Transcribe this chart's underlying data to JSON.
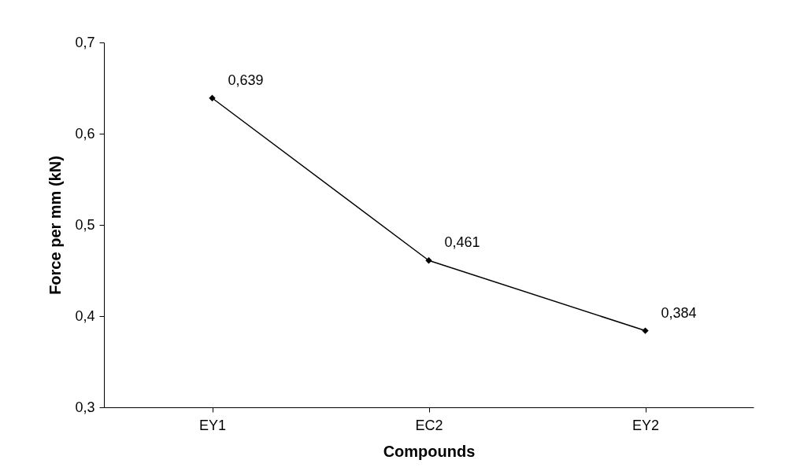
{
  "chart_data": {
    "type": "line",
    "xlabel": "Compounds",
    "ylabel": "Force per mm (kN)",
    "categories": [
      "EY1",
      "EC2",
      "EY2"
    ],
    "series": [
      {
        "color": "#000000",
        "values": [
          0.639,
          0.461,
          0.384
        ],
        "value_labels": [
          "0,639",
          "0,461",
          "0,384"
        ]
      }
    ],
    "ylim": [
      0.3,
      0.7
    ],
    "yticks": [
      {
        "value": 0.3,
        "label": "0,3"
      },
      {
        "value": 0.4,
        "label": "0,4"
      },
      {
        "value": 0.5,
        "label": "0,5"
      },
      {
        "value": 0.6,
        "label": "0,6"
      },
      {
        "value": 0.7,
        "label": "0,7"
      }
    ],
    "grid": false,
    "marker": "diamond",
    "line_style": "solid"
  }
}
